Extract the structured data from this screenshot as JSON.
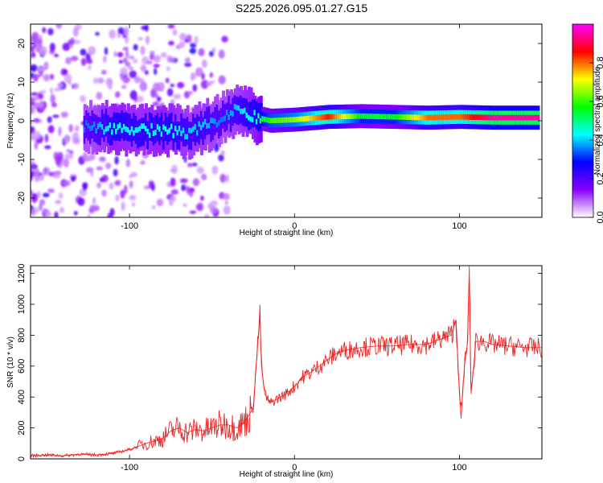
{
  "chart_data": [
    {
      "type": "heatmap",
      "title": "S225.2026.095.01.27.G15",
      "xlabel": "Height of straight line (km)",
      "ylabel": "Frequency (Hz)",
      "xlim": [
        -160,
        150
      ],
      "ylim": [
        -25,
        25
      ],
      "x_ticks": [
        -100,
        0,
        100
      ],
      "y_ticks": [
        -20,
        -10,
        0,
        10,
        20
      ],
      "colorbar": {
        "label": "Normalized spectral amplitude",
        "range": [
          0,
          1
        ],
        "ticks": [
          0.0,
          0.2,
          0.4,
          0.6,
          0.8
        ],
        "colors": [
          "#ffffff",
          "#8800ff",
          "#0000ff",
          "#00ffff",
          "#00ff00",
          "#ffff00",
          "#ff0000",
          "#ff00ff"
        ]
      },
      "ridge": [
        {
          "x": -125,
          "freq": -1.5,
          "amp": 0.35
        },
        {
          "x": -110,
          "freq": -1.8,
          "amp": 0.45
        },
        {
          "x": -95,
          "freq": -2.5,
          "amp": 0.42
        },
        {
          "x": -80,
          "freq": -2.5,
          "amp": 0.45
        },
        {
          "x": -65,
          "freq": -3.0,
          "amp": 0.4
        },
        {
          "x": -55,
          "freq": -1.5,
          "amp": 0.4
        },
        {
          "x": -45,
          "freq": 0.5,
          "amp": 0.35
        },
        {
          "x": -35,
          "freq": 3.0,
          "amp": 0.4
        },
        {
          "x": -25,
          "freq": 1.0,
          "amp": 0.45
        },
        {
          "x": -15,
          "freq": 0.0,
          "amp": 0.6
        },
        {
          "x": 0,
          "freq": 0.3,
          "amp": 0.65
        },
        {
          "x": 20,
          "freq": 1.0,
          "amp": 0.85
        },
        {
          "x": 40,
          "freq": 1.2,
          "amp": 0.55
        },
        {
          "x": 60,
          "freq": 1.0,
          "amp": 0.55
        },
        {
          "x": 80,
          "freq": 0.8,
          "amp": 0.8
        },
        {
          "x": 100,
          "freq": 1.0,
          "amp": 0.8
        },
        {
          "x": 120,
          "freq": 0.8,
          "amp": 0.95
        },
        {
          "x": 145,
          "freq": 0.8,
          "amp": 0.95
        }
      ]
    },
    {
      "type": "line",
      "xlabel": "Height of straight line (km)",
      "ylabel": "SNR (10 * v/v)",
      "xlim": [
        -160,
        150
      ],
      "ylim": [
        0,
        1250
      ],
      "x_ticks": [
        -100,
        0,
        100
      ],
      "y_ticks": [
        0,
        200,
        400,
        600,
        800,
        1000,
        1200
      ],
      "series": [
        {
          "color": "#ee2222",
          "points": [
            [
              -160,
              20
            ],
            [
              -150,
              25
            ],
            [
              -140,
              20
            ],
            [
              -130,
              30
            ],
            [
              -120,
              25
            ],
            [
              -110,
              35
            ],
            [
              -100,
              60
            ],
            [
              -90,
              100
            ],
            [
              -80,
              130
            ],
            [
              -75,
              180
            ],
            [
              -70,
              200
            ],
            [
              -65,
              170
            ],
            [
              -60,
              190
            ],
            [
              -55,
              180
            ],
            [
              -50,
              200
            ],
            [
              -45,
              220
            ],
            [
              -40,
              220
            ],
            [
              -35,
              200
            ],
            [
              -30,
              240
            ],
            [
              -25,
              330
            ],
            [
              -21,
              940
            ],
            [
              -20,
              600
            ],
            [
              -18,
              420
            ],
            [
              -15,
              360
            ],
            [
              -10,
              390
            ],
            [
              -5,
              420
            ],
            [
              0,
              470
            ],
            [
              5,
              530
            ],
            [
              10,
              560
            ],
            [
              15,
              600
            ],
            [
              20,
              640
            ],
            [
              25,
              680
            ],
            [
              30,
              700
            ],
            [
              40,
              720
            ],
            [
              50,
              730
            ],
            [
              60,
              730
            ],
            [
              70,
              740
            ],
            [
              80,
              740
            ],
            [
              85,
              760
            ],
            [
              90,
              780
            ],
            [
              95,
              800
            ],
            [
              98,
              900
            ],
            [
              100,
              420
            ],
            [
              101,
              260
            ],
            [
              103,
              600
            ],
            [
              105,
              760
            ],
            [
              106,
              1250
            ],
            [
              107,
              420
            ],
            [
              108,
              520
            ],
            [
              110,
              760
            ],
            [
              115,
              760
            ],
            [
              120,
              740
            ],
            [
              130,
              730
            ],
            [
              140,
              720
            ],
            [
              150,
              720
            ]
          ]
        }
      ]
    }
  ]
}
